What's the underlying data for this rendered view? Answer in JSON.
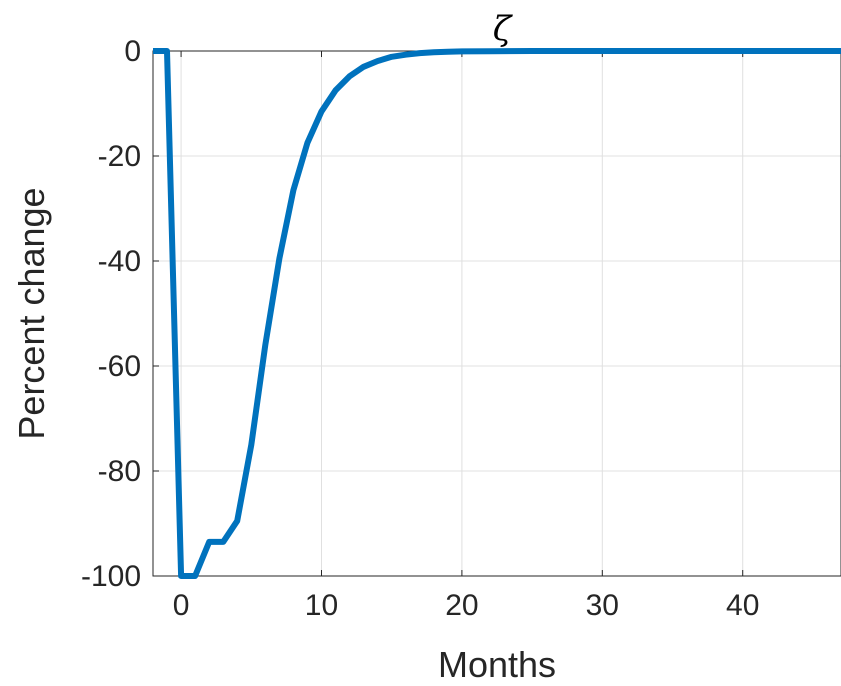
{
  "chart_data": {
    "type": "line",
    "title": "ζ",
    "xlabel": "Months",
    "ylabel": "Percent change",
    "xlim": [
      -2,
      47
    ],
    "ylim": [
      -100,
      0
    ],
    "xticks": [
      0,
      10,
      20,
      30,
      40
    ],
    "yticks": [
      0,
      -20,
      -40,
      -60,
      -80,
      -100
    ],
    "xtick_labels": [
      "0",
      "10",
      "20",
      "30",
      "40"
    ],
    "ytick_labels": [
      "0",
      "-20",
      "-40",
      "-60",
      "-80",
      "-100"
    ],
    "grid": true,
    "series": [
      {
        "color": "#0072BD",
        "x": [
          -2,
          -1,
          0,
          1,
          2,
          3,
          4,
          5,
          6,
          7,
          8,
          9,
          10,
          11,
          12,
          13,
          14,
          15,
          16,
          17,
          18,
          19,
          20,
          22,
          25,
          30,
          35,
          40,
          47
        ],
        "y": [
          0,
          0,
          -100,
          -100,
          -93.5,
          -93.5,
          -89.5,
          -75,
          -56,
          -39.5,
          -26.5,
          -17.5,
          -11.5,
          -7.5,
          -4.8,
          -3,
          -1.9,
          -1.1,
          -0.7,
          -0.4,
          -0.25,
          -0.15,
          -0.08,
          -0.03,
          0,
          0,
          0,
          0,
          0
        ]
      }
    ]
  }
}
